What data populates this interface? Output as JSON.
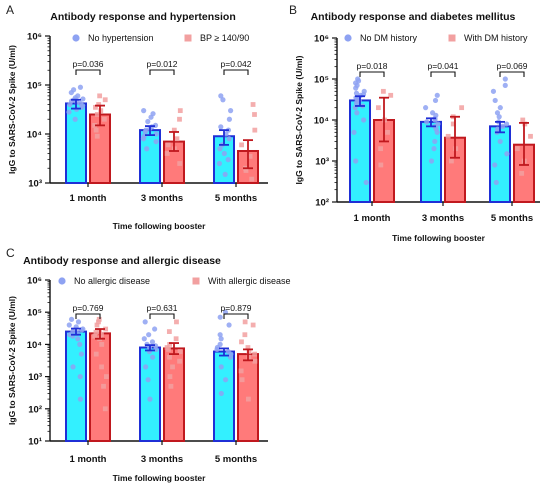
{
  "colors": {
    "series_a_fill": "#33f0ff",
    "series_a_edge": "#1f2fd6",
    "series_a_dot": "#8ea2f2",
    "series_b_fill": "#ff7a7a",
    "series_b_edge": "#c0181e",
    "series_b_dot": "#f2a0a0"
  },
  "chart_data": [
    {
      "panel": "A",
      "type": "bar",
      "title": "Antibody response and hypertension",
      "xlabel": "Time following booster",
      "ylabel": "IgG to SARS-CoV-2 Spike (U/ml)",
      "yscale": "log",
      "ylim": [
        1000,
        1000000
      ],
      "yticks": [
        "10³",
        "10⁴",
        "10⁵",
        "10⁶"
      ],
      "yticks_values": [
        1000,
        10000,
        100000,
        1000000
      ],
      "categories": [
        "1 month",
        "3 months",
        "5 months"
      ],
      "legend_position": "top",
      "series": [
        {
          "name": "No hypertension",
          "values": [
            42000,
            12000,
            9000
          ],
          "err_low": [
            33000,
            9500,
            6000
          ],
          "err_high": [
            50000,
            14500,
            12000
          ],
          "points": [
            [
              28000,
              35000,
              40000,
              45000,
              50000,
              55000,
              60000,
              70000,
              80000,
              32000,
              38000,
              42000,
              47000,
              52000,
              90000,
              20000
            ],
            [
              5000,
              7000,
              9000,
              11000,
              13000,
              15000,
              18000,
              22000,
              26000,
              10000,
              12000,
              14000,
              30000,
              8000
            ],
            [
              1500,
              2500,
              4000,
              6000,
              8000,
              10000,
              14000,
              20000,
              30000,
              50000,
              60000,
              5000,
              12000,
              3000
            ]
          ]
        },
        {
          "name": "BP ≥ 140/90",
          "values": [
            25000,
            7000,
            4500
          ],
          "err_low": [
            15000,
            4500,
            2000
          ],
          "err_high": [
            38000,
            11000,
            7500
          ],
          "points": [
            [
              9000,
              15000,
              20000,
              30000,
              40000,
              50000,
              60000,
              12000,
              25000,
              35000
            ],
            [
              2500,
              4000,
              6000,
              8000,
              12000,
              20000,
              30000,
              5000
            ],
            [
              1200,
              2000,
              3500,
              6000,
              12000,
              25000,
              40000,
              1800
            ]
          ]
        }
      ],
      "pvalues": [
        "p=0.036",
        "p=0.012",
        "p=0.042"
      ]
    },
    {
      "panel": "B",
      "type": "bar",
      "title": "Antibody response and diabetes mellitus",
      "xlabel": "Time following booster",
      "ylabel": "IgG to SARS-CoV-2 Spike (U/ml)",
      "yscale": "log",
      "ylim": [
        100,
        1000000
      ],
      "yticks": [
        "10²",
        "10³",
        "10⁴",
        "10⁵",
        "10⁶"
      ],
      "yticks_values": [
        100,
        1000,
        10000,
        100000,
        1000000
      ],
      "categories": [
        "1 month",
        "3 months",
        "5 months"
      ],
      "legend_position": "top",
      "series": [
        {
          "name": "No DM history",
          "values": [
            30000,
            9000,
            7000
          ],
          "err_low": [
            22000,
            7000,
            5000
          ],
          "err_high": [
            38000,
            11000,
            9000
          ],
          "points": [
            [
              300,
              1000,
              5000,
              10000,
              15000,
              20000,
              25000,
              30000,
              35000,
              40000,
              45000,
              50000,
              60000,
              70000,
              80000,
              90000,
              100000,
              22000,
              28000,
              33000,
              42000
            ],
            [
              1000,
              2000,
              3000,
              5000,
              7000,
              9000,
              11000,
              13000,
              15000,
              20000,
              30000,
              40000,
              8000,
              10000,
              6000
            ],
            [
              300,
              800,
              1500,
              3000,
              5000,
              7000,
              9000,
              12000,
              15000,
              20000,
              30000,
              50000,
              70000,
              100000,
              6000,
              8000
            ]
          ]
        },
        {
          "name": "With DM history",
          "values": [
            10000,
            3700,
            2500
          ],
          "err_low": [
            3000,
            1200,
            800
          ],
          "err_high": [
            35000,
            12000,
            8500
          ],
          "points": [
            [
              800,
              2000,
              5000,
              10000,
              20000,
              40000,
              50000
            ],
            [
              1000,
              2000,
              4000,
              8000,
              12000,
              20000
            ],
            [
              500,
              1000,
              2000,
              4000,
              8000,
              10000
            ]
          ]
        }
      ],
      "pvalues": [
        "p=0.018",
        "p=0.041",
        "p=0.069"
      ]
    },
    {
      "panel": "C",
      "type": "bar",
      "title": "Antibody response and allergic disease",
      "xlabel": "Time following booster",
      "ylabel": "IgG to SARS-CoV-2 Spike (U/ml)",
      "yscale": "log",
      "ylim": [
        10,
        1000000
      ],
      "yticks": [
        "10¹",
        "10²",
        "10³",
        "10⁴",
        "10⁵",
        "10⁶"
      ],
      "yticks_values": [
        10,
        100,
        1000,
        10000,
        100000,
        1000000
      ],
      "categories": [
        "1 month",
        "3 months",
        "5 months"
      ],
      "legend_position": "top",
      "series": [
        {
          "name": "No allergic disease",
          "values": [
            25000,
            8000,
            6000
          ],
          "err_low": [
            20000,
            6500,
            4500
          ],
          "err_high": [
            31000,
            9500,
            7500
          ],
          "points": [
            [
              200,
              1000,
              5000,
              10000,
              15000,
              20000,
              25000,
              30000,
              35000,
              40000,
              50000,
              60000,
              22000,
              28000,
              18000,
              2000
            ],
            [
              200,
              800,
              2000,
              4000,
              6000,
              8000,
              10000,
              12000,
              15000,
              20000,
              30000,
              50000,
              7000,
              9000
            ],
            [
              300,
              800,
              2000,
              4000,
              6000,
              8000,
              10000,
              15000,
              20000,
              40000,
              70000,
              100000,
              5000,
              7000
            ]
          ]
        },
        {
          "name": "With allergic disease",
          "values": [
            22000,
            7500,
            5000
          ],
          "err_low": [
            15000,
            5000,
            3200
          ],
          "err_high": [
            30000,
            11000,
            7000
          ],
          "points": [
            [
              100,
              500,
              2000,
              5000,
              10000,
              15000,
              20000,
              25000,
              30000,
              40000,
              50000,
              60000,
              18000,
              24000,
              1000
            ],
            [
              500,
              1000,
              2000,
              4000,
              6000,
              8000,
              10000,
              15000,
              25000,
              50000,
              7000,
              3000
            ],
            [
              200,
              800,
              1500,
              3000,
              5000,
              8000,
              12000,
              20000,
              40000,
              50000,
              4000,
              6000
            ]
          ]
        }
      ],
      "pvalues": [
        "p=0.769",
        "p=0.631",
        "p=0.879"
      ]
    }
  ]
}
